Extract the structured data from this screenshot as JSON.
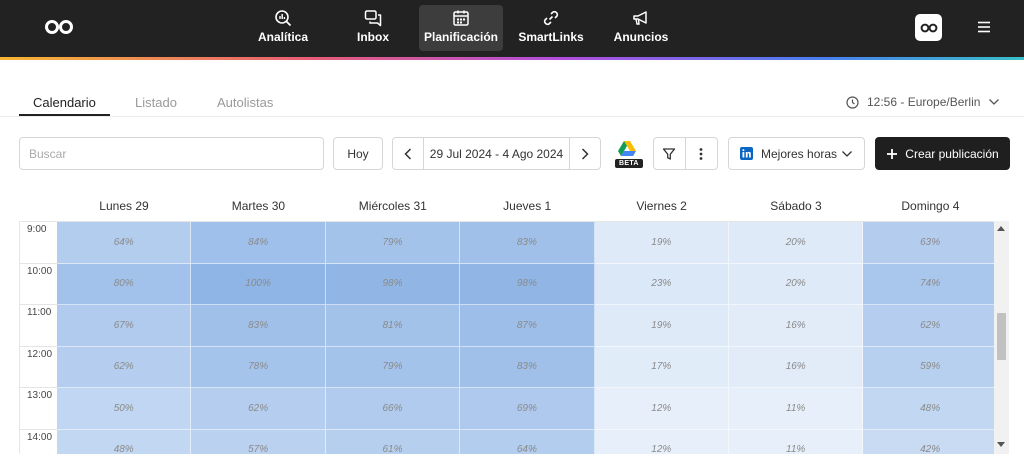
{
  "nav": {
    "items": [
      {
        "label": "Analítica",
        "icon": "analytics-icon"
      },
      {
        "label": "Inbox",
        "icon": "inbox-icon"
      },
      {
        "label": "Planificación",
        "icon": "calendar-icon"
      },
      {
        "label": "SmartLinks",
        "icon": "link-icon"
      },
      {
        "label": "Anuncios",
        "icon": "megaphone-icon"
      }
    ],
    "active": "Planificación"
  },
  "tabs": [
    {
      "label": "Calendario"
    },
    {
      "label": "Listado"
    },
    {
      "label": "Autolistas"
    }
  ],
  "timezone": "12:56 - Europe/Berlin",
  "toolbar": {
    "search_placeholder": "Buscar",
    "today_label": "Hoy",
    "date_range": "29 Jul 2024 - 4 Ago 2024",
    "beta_label": "BETA",
    "network_label": "Mejores horas",
    "create_label": "Crear publicación"
  },
  "calendar": {
    "days": [
      "Lunes 29",
      "Martes 30",
      "Miércoles 31",
      "Jueves 1",
      "Viernes 2",
      "Sábado 3",
      "Domingo 4"
    ],
    "hours": [
      "9:00",
      "10:00",
      "11:00",
      "12:00",
      "13:00",
      "14:00"
    ],
    "values": [
      [
        64,
        84,
        79,
        83,
        19,
        20,
        63
      ],
      [
        80,
        100,
        98,
        98,
        23,
        20,
        74
      ],
      [
        67,
        83,
        81,
        87,
        19,
        16,
        62
      ],
      [
        62,
        78,
        79,
        83,
        17,
        16,
        59
      ],
      [
        50,
        62,
        66,
        69,
        12,
        11,
        48
      ],
      [
        48,
        57,
        61,
        64,
        12,
        11,
        42
      ]
    ]
  },
  "colors": {
    "heat_high": "#8fb5e6",
    "heat_low": "#f2f7fd",
    "nav_bg": "#222222",
    "primary": "#1f1f1f"
  }
}
